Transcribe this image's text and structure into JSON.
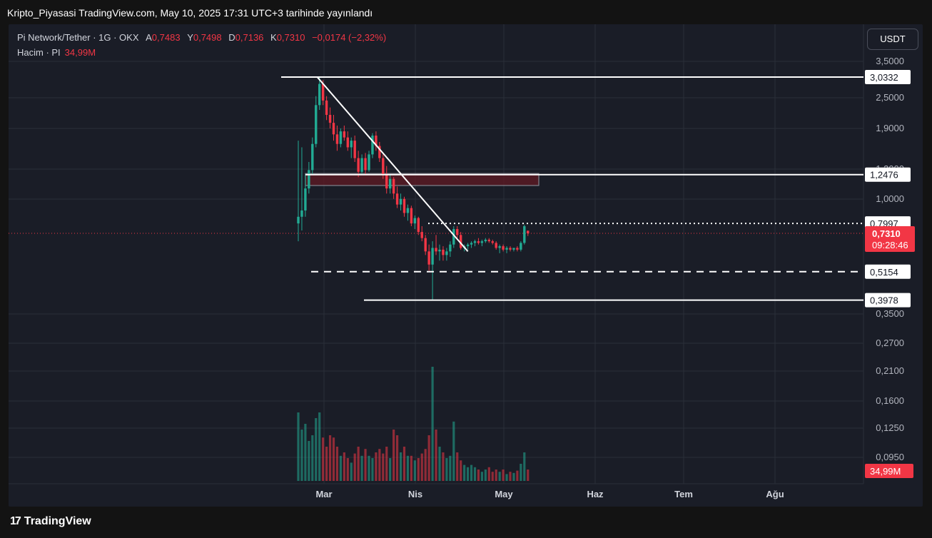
{
  "header": {
    "title": "Kripto_Piyasasi TradingView.com, May 10, 2025 17:31 UTC+3 tarihinde yayınlandı"
  },
  "legend": {
    "symbol": "Pi Network/Tether · 1G · OKX",
    "open_label": "A",
    "open": "0,7483",
    "high_label": "Y",
    "high": "0,7498",
    "low_label": "D",
    "low": "0,7136",
    "close_label": "K",
    "close": "0,7310",
    "change": "−0,0174 (−2,32%)",
    "volume_label": "Hacim · PI",
    "volume": "34,99M"
  },
  "currency_button": "USDT",
  "footer": {
    "logo_mark": "17",
    "brand": "TradingView"
  },
  "colors": {
    "up": "#22ab94",
    "down": "#f23645",
    "background": "#1a1d27",
    "grid": "#2a2e39",
    "drawing": "#ffffff",
    "zone": "#5c1a24"
  },
  "chart_data": {
    "type": "candlestick",
    "price_scale": "log",
    "ylim": [
      0.08,
      3.8
    ],
    "x_labels": [
      "Mar",
      "Nis",
      "May",
      "Haz",
      "Tem",
      "Ağu"
    ],
    "y_ticks": [
      "3,5000",
      "2,5000",
      "1,9000",
      "1,3000",
      "1,0000",
      "0,3500",
      "0,2700",
      "0,2100",
      "0,1600",
      "0,1250",
      "0,0950"
    ],
    "level_labels": [
      {
        "value": 3.0332,
        "text": "3,0332",
        "style": "solid"
      },
      {
        "value": 1.2476,
        "text": "1,2476",
        "style": "solid"
      },
      {
        "value": 0.7997,
        "text": "0,7997",
        "style": "dotted"
      },
      {
        "value": 0.5154,
        "text": "0,5154",
        "style": "dashed"
      },
      {
        "value": 0.3978,
        "text": "0,3978",
        "style": "solid"
      }
    ],
    "last_price": {
      "text": "0,7310",
      "countdown": "09:28:46",
      "value": 0.731
    },
    "volume_label": "34,99M",
    "resistance_zone": {
      "top": 1.26,
      "bottom": 1.13
    },
    "trendline": {
      "from": {
        "day": 5,
        "price": 3.03
      },
      "to": {
        "day": 48,
        "price": 0.62
      }
    },
    "candles": [
      [
        0.8,
        1.7,
        0.68,
        0.85,
        60
      ],
      [
        0.85,
        1.6,
        0.75,
        0.9,
        45
      ],
      [
        0.9,
        1.25,
        0.85,
        1.1,
        50
      ],
      [
        1.1,
        1.4,
        1.05,
        1.3,
        35
      ],
      [
        1.3,
        1.75,
        1.25,
        1.65,
        40
      ],
      [
        1.65,
        2.55,
        1.6,
        2.35,
        55
      ],
      [
        2.35,
        3.03,
        2.25,
        2.85,
        60
      ],
      [
        2.85,
        2.95,
        2.35,
        2.45,
        38
      ],
      [
        2.45,
        2.55,
        2.05,
        2.15,
        30
      ],
      [
        2.15,
        2.3,
        1.9,
        2.0,
        40
      ],
      [
        2.0,
        2.15,
        1.7,
        1.8,
        38
      ],
      [
        1.8,
        1.95,
        1.55,
        1.65,
        30
      ],
      [
        1.65,
        1.9,
        1.6,
        1.85,
        22
      ],
      [
        1.85,
        1.95,
        1.7,
        1.75,
        25
      ],
      [
        1.75,
        1.85,
        1.55,
        1.6,
        20
      ],
      [
        1.6,
        1.75,
        1.45,
        1.7,
        16
      ],
      [
        1.7,
        1.78,
        1.4,
        1.45,
        24
      ],
      [
        1.45,
        1.55,
        1.22,
        1.28,
        30
      ],
      [
        1.28,
        1.5,
        1.25,
        1.45,
        22
      ],
      [
        1.45,
        1.52,
        1.25,
        1.3,
        28
      ],
      [
        1.3,
        1.55,
        1.28,
        1.5,
        22
      ],
      [
        1.5,
        1.82,
        1.45,
        1.78,
        20
      ],
      [
        1.78,
        1.85,
        1.55,
        1.62,
        25
      ],
      [
        1.62,
        1.68,
        1.4,
        1.45,
        28
      ],
      [
        1.45,
        1.5,
        1.2,
        1.25,
        24
      ],
      [
        1.25,
        1.35,
        1.05,
        1.1,
        30
      ],
      [
        1.1,
        1.25,
        1.05,
        1.2,
        20
      ],
      [
        1.2,
        1.22,
        1.0,
        1.05,
        45
      ],
      [
        1.05,
        1.12,
        0.92,
        0.95,
        40
      ],
      [
        0.95,
        1.05,
        0.9,
        1.0,
        25
      ],
      [
        1.0,
        1.02,
        0.85,
        0.88,
        30
      ],
      [
        0.88,
        0.95,
        0.82,
        0.92,
        22
      ],
      [
        0.92,
        0.94,
        0.78,
        0.8,
        22
      ],
      [
        0.8,
        0.86,
        0.76,
        0.84,
        18
      ],
      [
        0.84,
        0.85,
        0.72,
        0.74,
        20
      ],
      [
        0.74,
        0.78,
        0.68,
        0.7,
        24
      ],
      [
        0.7,
        0.72,
        0.6,
        0.62,
        28
      ],
      [
        0.62,
        0.66,
        0.52,
        0.55,
        40
      ],
      [
        0.55,
        0.68,
        0.4,
        0.64,
        100
      ],
      [
        0.64,
        0.72,
        0.6,
        0.62,
        45
      ],
      [
        0.62,
        0.66,
        0.57,
        0.63,
        30
      ],
      [
        0.63,
        0.65,
        0.57,
        0.6,
        25
      ],
      [
        0.6,
        0.64,
        0.57,
        0.62,
        20
      ],
      [
        0.62,
        0.68,
        0.59,
        0.66,
        22
      ],
      [
        0.66,
        0.78,
        0.64,
        0.76,
        52
      ],
      [
        0.76,
        0.78,
        0.7,
        0.72,
        25
      ],
      [
        0.72,
        0.74,
        0.63,
        0.64,
        18
      ],
      [
        0.64,
        0.66,
        0.62,
        0.65,
        14
      ],
      [
        0.65,
        0.67,
        0.63,
        0.66,
        12
      ],
      [
        0.66,
        0.68,
        0.64,
        0.67,
        14
      ],
      [
        0.67,
        0.69,
        0.65,
        0.68,
        12
      ],
      [
        0.68,
        0.7,
        0.66,
        0.67,
        10
      ],
      [
        0.67,
        0.69,
        0.65,
        0.68,
        8
      ],
      [
        0.68,
        0.7,
        0.67,
        0.69,
        10
      ],
      [
        0.69,
        0.7,
        0.67,
        0.68,
        12
      ],
      [
        0.68,
        0.69,
        0.66,
        0.67,
        8
      ],
      [
        0.67,
        0.68,
        0.63,
        0.64,
        10
      ],
      [
        0.64,
        0.66,
        0.61,
        0.65,
        8
      ],
      [
        0.65,
        0.66,
        0.62,
        0.63,
        10
      ],
      [
        0.63,
        0.65,
        0.61,
        0.64,
        6
      ],
      [
        0.64,
        0.65,
        0.62,
        0.63,
        8
      ],
      [
        0.63,
        0.64,
        0.62,
        0.64,
        7
      ],
      [
        0.64,
        0.65,
        0.62,
        0.63,
        9
      ],
      [
        0.63,
        0.68,
        0.62,
        0.67,
        15
      ],
      [
        0.67,
        0.79,
        0.66,
        0.78,
        25
      ],
      [
        0.7483,
        0.7498,
        0.7136,
        0.731,
        10
      ]
    ]
  }
}
